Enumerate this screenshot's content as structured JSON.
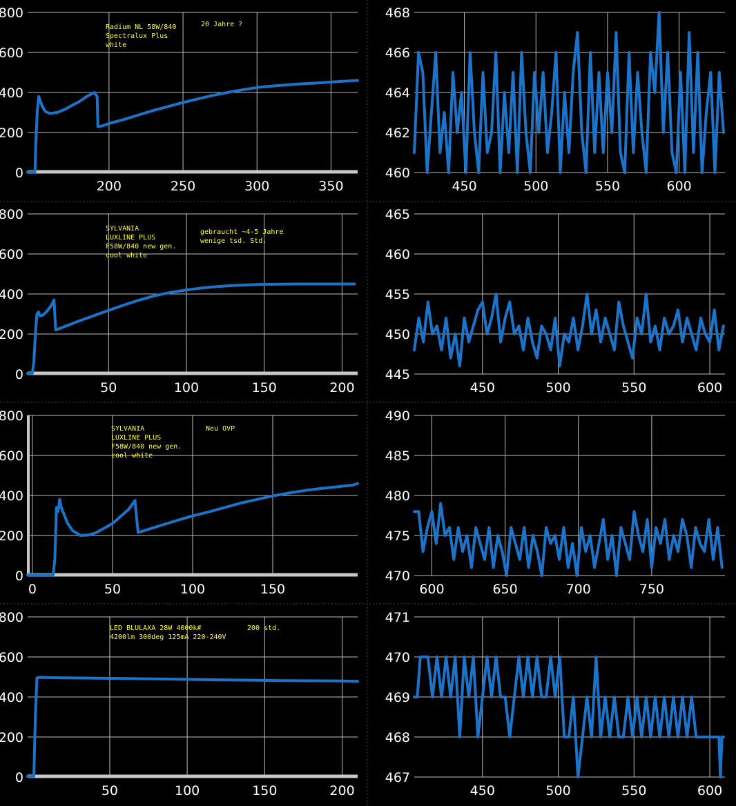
{
  "colors": {
    "background": "#000000",
    "grid": "#bfbfbf",
    "series": "#1b74c9",
    "axis_baseline": "#c8c8c8",
    "tick_text": "#ffffff",
    "annotation": "#ffff33",
    "divider": "#444444"
  },
  "chart_data": [
    {
      "type": "line",
      "row": 0,
      "col": 0,
      "xlim": [
        145,
        368
      ],
      "ylim": [
        0,
        800
      ],
      "xticks": [
        200,
        250,
        300,
        350
      ],
      "yticks": [
        0,
        200,
        400,
        600,
        800
      ],
      "x_baseline": true,
      "y_baseline": false,
      "grid": true,
      "annotations": [
        "Radium NL 58W/840",
        "Spectralux Plus",
        "white",
        "20 Jahre ?"
      ],
      "series": [
        {
          "x": [
            145,
            150,
            150.5,
            151.5,
            152.5,
            153.5,
            155,
            157,
            160,
            165,
            170,
            175,
            180,
            185,
            188,
            190,
            192,
            192.5,
            195,
            200,
            210,
            220,
            230,
            240,
            250,
            260,
            270,
            280,
            290,
            300,
            310,
            320,
            330,
            340,
            350,
            360,
            368
          ],
          "y": [
            3,
            3,
            140,
            300,
            380,
            360,
            330,
            305,
            295,
            300,
            315,
            335,
            355,
            380,
            392,
            400,
            380,
            230,
            232,
            245,
            265,
            288,
            310,
            330,
            350,
            368,
            385,
            400,
            413,
            425,
            432,
            438,
            443,
            447,
            452,
            457,
            460
          ]
        }
      ]
    },
    {
      "type": "line",
      "row": 0,
      "col": 1,
      "xlim": [
        415,
        632
      ],
      "ylim": [
        460,
        468
      ],
      "xticks": [
        450,
        500,
        550,
        600
      ],
      "yticks": [
        460,
        462,
        464,
        466,
        468
      ],
      "x_baseline": false,
      "y_baseline": false,
      "grid": true,
      "series": [
        {
          "x": [
            415,
            418,
            421,
            424,
            427,
            430,
            433,
            436,
            439,
            442,
            445,
            448,
            451,
            454,
            457,
            460,
            463,
            466,
            469,
            472,
            475,
            478,
            481,
            484,
            487,
            490,
            493,
            496,
            499,
            502,
            505,
            508,
            511,
            514,
            517,
            520,
            523,
            526,
            529,
            532,
            535,
            538,
            541,
            544,
            547,
            550,
            553,
            556,
            559,
            562,
            565,
            568,
            571,
            574,
            577,
            580,
            583,
            586,
            589,
            592,
            595,
            598,
            601,
            604,
            607,
            610,
            613,
            616,
            619,
            622,
            625,
            628,
            631
          ],
          "y": [
            461,
            466,
            465,
            460,
            463,
            466,
            461,
            463,
            460,
            465,
            462,
            464,
            460,
            466,
            462,
            460,
            465,
            461,
            462,
            466,
            460,
            464,
            461,
            465,
            460,
            466,
            462,
            460,
            465,
            462,
            465,
            461,
            463,
            466,
            460,
            464,
            461,
            465,
            467,
            462,
            460,
            466,
            461,
            465,
            461,
            465,
            462,
            467,
            461,
            460,
            466,
            461,
            465,
            462,
            460,
            466,
            464,
            468,
            462,
            466,
            461,
            460,
            465,
            460,
            467,
            461,
            466,
            460,
            463,
            465,
            460,
            465,
            462
          ]
        }
      ]
    },
    {
      "type": "line",
      "row": 1,
      "col": 0,
      "xlim": [
        -2,
        210
      ],
      "ylim": [
        0,
        800
      ],
      "xticks": [
        50,
        100,
        150,
        200
      ],
      "yticks": [
        0,
        200,
        400,
        600,
        800
      ],
      "x_baseline": true,
      "y_baseline": false,
      "grid": true,
      "annotations": [
        "SYLVANIA",
        "LUXLINE PLUS",
        "F58W/840 new gen.",
        "cool white",
        "gebraucht ~4-5 Jahre",
        "wenige tsd. Std."
      ],
      "series": [
        {
          "x": [
            -2,
            1,
            2,
            3,
            4,
            5,
            6,
            8,
            10,
            13,
            15,
            16,
            20,
            30,
            40,
            50,
            60,
            70,
            80,
            90,
            100,
            110,
            120,
            130,
            140,
            150,
            160,
            170,
            180,
            190,
            200,
            208
          ],
          "y": [
            3,
            3,
            60,
            200,
            300,
            310,
            290,
            295,
            310,
            340,
            370,
            220,
            232,
            262,
            290,
            318,
            345,
            370,
            392,
            408,
            420,
            430,
            437,
            442,
            446,
            448,
            449,
            450,
            450,
            450,
            450,
            450
          ]
        }
      ]
    },
    {
      "type": "line",
      "row": 1,
      "col": 1,
      "xlim": [
        405,
        610
      ],
      "ylim": [
        445,
        465
      ],
      "xticks": [
        450,
        500,
        550,
        600
      ],
      "yticks": [
        445,
        450,
        455,
        460,
        465
      ],
      "x_baseline": false,
      "y_baseline": false,
      "grid": true,
      "series": [
        {
          "x": [
            405,
            408,
            411,
            414,
            417,
            420,
            423,
            426,
            429,
            432,
            435,
            438,
            441,
            444,
            447,
            450,
            453,
            456,
            459,
            462,
            465,
            468,
            471,
            474,
            477,
            480,
            483,
            486,
            489,
            492,
            495,
            498,
            501,
            504,
            507,
            510,
            513,
            516,
            519,
            522,
            525,
            528,
            531,
            534,
            537,
            540,
            543,
            546,
            549,
            552,
            555,
            558,
            561,
            564,
            567,
            570,
            573,
            576,
            579,
            582,
            585,
            588,
            591,
            594,
            597,
            600,
            603,
            606,
            609
          ],
          "y": [
            448,
            452,
            449,
            454,
            450,
            451,
            448,
            452,
            447,
            450,
            446,
            452,
            449,
            451,
            453,
            454,
            450,
            452,
            455,
            449,
            452,
            454,
            450,
            451,
            448,
            452,
            449,
            447,
            451,
            450,
            448,
            452,
            446,
            450,
            449,
            452,
            448,
            451,
            455,
            450,
            453,
            449,
            452,
            450,
            448,
            454,
            451,
            449,
            447,
            452,
            450,
            455,
            449,
            451,
            448,
            452,
            450,
            451,
            453,
            449,
            452,
            450,
            448,
            452,
            450,
            449,
            453,
            448,
            451
          ]
        }
      ]
    },
    {
      "type": "line",
      "row": 2,
      "col": 0,
      "xlim": [
        -3,
        203
      ],
      "ylim": [
        0,
        800
      ],
      "xticks": [
        0,
        50,
        100,
        150
      ],
      "yticks": [
        0,
        200,
        400,
        600,
        800
      ],
      "x_baseline": true,
      "y_baseline": true,
      "grid": true,
      "annotations": [
        "SYLVANIA",
        "LUXLINE PLUS",
        "F58W/840 new gen.",
        "cool white",
        "Neu OVP"
      ],
      "series": [
        {
          "x": [
            -3,
            13,
            14,
            15,
            16,
            17,
            18,
            20,
            22,
            25,
            30,
            35,
            40,
            50,
            60,
            64,
            65,
            66,
            70,
            80,
            90,
            100,
            110,
            120,
            130,
            140,
            150,
            160,
            170,
            180,
            190,
            200,
            203
          ],
          "y": [
            3,
            3,
            80,
            340,
            320,
            380,
            340,
            300,
            260,
            225,
            200,
            202,
            215,
            260,
            330,
            375,
            290,
            215,
            225,
            250,
            275,
            298,
            318,
            340,
            362,
            380,
            398,
            412,
            425,
            435,
            443,
            452,
            460
          ]
        }
      ]
    },
    {
      "type": "line",
      "row": 2,
      "col": 1,
      "xlim": [
        588,
        800
      ],
      "ylim": [
        470,
        490
      ],
      "xticks": [
        600,
        650,
        700,
        750
      ],
      "yticks": [
        470,
        475,
        480,
        485,
        490
      ],
      "x_baseline": false,
      "y_baseline": false,
      "grid": true,
      "series": [
        {
          "x": [
            588,
            591,
            594,
            597,
            600,
            603,
            606,
            609,
            612,
            615,
            618,
            621,
            624,
            627,
            630,
            633,
            636,
            639,
            642,
            645,
            648,
            651,
            654,
            657,
            660,
            663,
            666,
            669,
            672,
            675,
            678,
            681,
            684,
            687,
            690,
            693,
            696,
            699,
            702,
            705,
            708,
            711,
            714,
            717,
            720,
            723,
            726,
            729,
            732,
            735,
            738,
            741,
            744,
            747,
            750,
            753,
            756,
            759,
            762,
            765,
            768,
            771,
            774,
            777,
            780,
            783,
            786,
            789,
            792,
            795,
            798
          ],
          "y": [
            478,
            478,
            473,
            476,
            478,
            474,
            479,
            475,
            476,
            472,
            476,
            473,
            475,
            471,
            476,
            474,
            472,
            476,
            471,
            475,
            473,
            470,
            476,
            474,
            472,
            476,
            471,
            475,
            473,
            470,
            476,
            474,
            475,
            472,
            476,
            471,
            474,
            470,
            476,
            473,
            475,
            471,
            474,
            477,
            472,
            475,
            470,
            476,
            474,
            472,
            478,
            475,
            473,
            477,
            471,
            476,
            474,
            477,
            472,
            475,
            473,
            477,
            475,
            471,
            476,
            474,
            473,
            477,
            472,
            476,
            471
          ]
        }
      ]
    },
    {
      "type": "line",
      "row": 3,
      "col": 0,
      "xlim": [
        -3,
        210
      ],
      "ylim": [
        0,
        800
      ],
      "xticks": [
        50,
        100,
        150,
        200
      ],
      "yticks": [
        0,
        200,
        400,
        600,
        800
      ],
      "x_baseline": true,
      "y_baseline": false,
      "grid": true,
      "annotations": [
        "LED BLULAXA 28W 4000k#",
        "4200lm 300deg 125mA 220-240V",
        "200 std."
      ],
      "series": [
        {
          "x": [
            -3,
            1,
            2,
            3,
            4,
            10,
            20,
            40,
            60,
            80,
            100,
            120,
            140,
            160,
            180,
            200,
            210
          ],
          "y": [
            3,
            3,
            300,
            495,
            498,
            497,
            496,
            494,
            492,
            490,
            488,
            486,
            484,
            482,
            481,
            480,
            478
          ]
        }
      ]
    },
    {
      "type": "line",
      "row": 3,
      "col": 1,
      "xlim": [
        405,
        610
      ],
      "ylim": [
        467,
        471
      ],
      "xticks": [
        450,
        500,
        550,
        600
      ],
      "yticks": [
        467,
        468,
        469,
        470,
        471
      ],
      "x_baseline": false,
      "y_baseline": false,
      "grid": true,
      "series": [
        {
          "x": [
            405,
            407,
            409,
            411,
            414,
            417,
            420,
            423,
            426,
            429,
            432,
            435,
            438,
            441,
            444,
            447,
            450,
            453,
            456,
            459,
            462,
            465,
            468,
            471,
            474,
            477,
            480,
            483,
            486,
            489,
            492,
            495,
            498,
            501,
            504,
            507,
            510,
            513,
            516,
            519,
            522,
            525,
            528,
            531,
            534,
            537,
            540,
            543,
            546,
            549,
            552,
            555,
            558,
            561,
            564,
            567,
            570,
            573,
            576,
            579,
            582,
            585,
            588,
            591,
            594,
            597,
            600,
            603,
            606,
            607,
            608,
            609
          ],
          "y": [
            469,
            469,
            470,
            470,
            470,
            469,
            470,
            469,
            470,
            469,
            470,
            468,
            470,
            469,
            470,
            468,
            469,
            470,
            469,
            470,
            469,
            469,
            468,
            469,
            470,
            469,
            470,
            469,
            470,
            469,
            469,
            470,
            469,
            470,
            468,
            468,
            469,
            467,
            468,
            469,
            468,
            470,
            468,
            469,
            468,
            469,
            468,
            468,
            469,
            468,
            469,
            468,
            469,
            468,
            469,
            468,
            469,
            468,
            469,
            468,
            469,
            468,
            469,
            468,
            468,
            468,
            468,
            468,
            468,
            467,
            468,
            468
          ]
        }
      ]
    }
  ]
}
